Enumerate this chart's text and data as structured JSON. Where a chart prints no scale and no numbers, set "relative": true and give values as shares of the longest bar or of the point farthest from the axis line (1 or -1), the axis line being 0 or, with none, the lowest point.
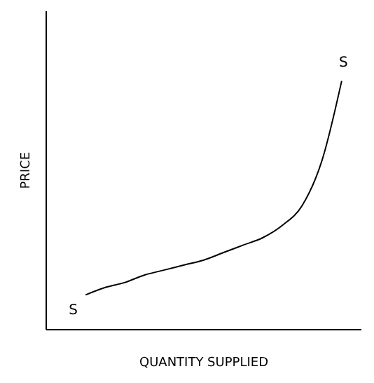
{
  "chart_data": {
    "type": "line",
    "relative": true,
    "xlabel": "QUANTITY SUPPLIED",
    "ylabel": "PRICE",
    "categories": [
      null,
      null,
      null,
      null,
      null,
      null,
      null,
      null,
      null,
      null,
      null,
      null,
      null,
      null,
      null,
      null,
      null
    ],
    "series": [
      {
        "color": "#000000",
        "values": [
          null,
          null,
          0.14,
          0.17,
          0.19,
          0.22,
          0.24,
          0.26,
          0.28,
          0.31,
          0.34,
          0.37,
          0.42,
          0.5,
          0.68,
          1,
          null
        ]
      }
    ],
    "annotations": [
      "S",
      "S"
    ]
  }
}
